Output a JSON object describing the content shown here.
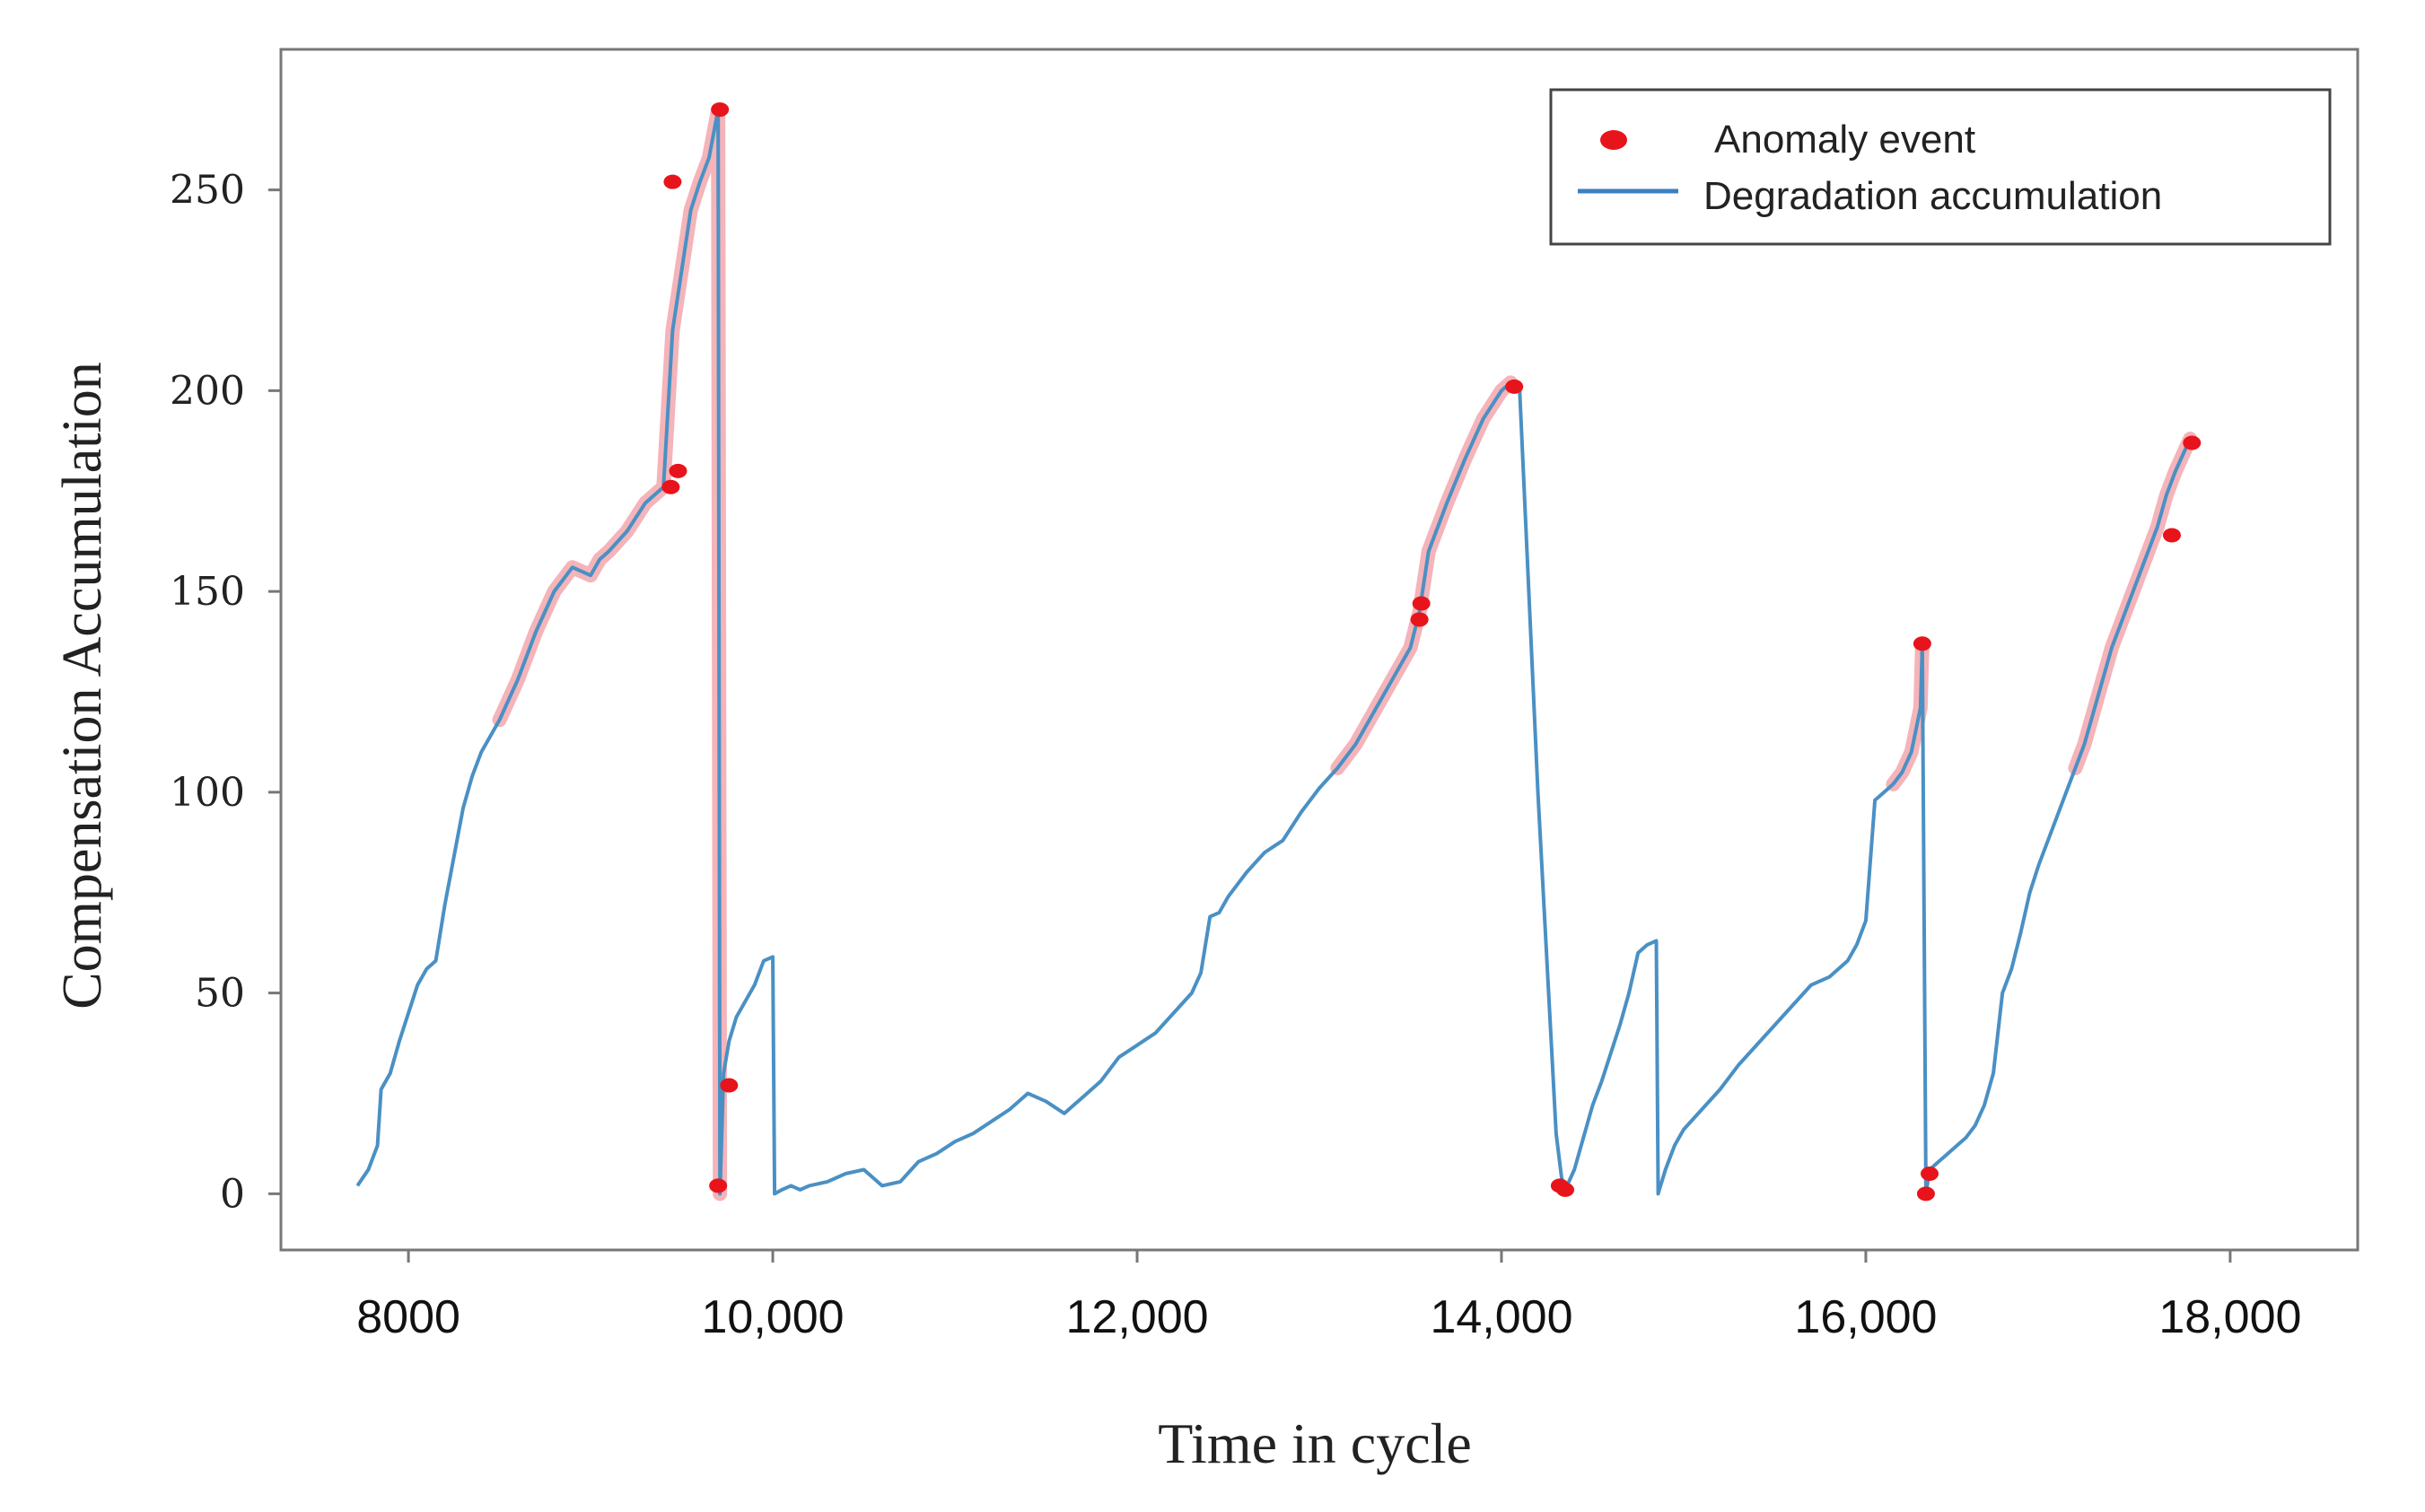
{
  "chart_data": {
    "type": "line",
    "title": "",
    "xlabel": "Time  in cycle",
    "ylabel": "Compensation Accumulation",
    "xlim": [
      7300,
      18700
    ],
    "ylim": [
      -14,
      285
    ],
    "x_ticks": [
      {
        "value": 8000,
        "label": "8000"
      },
      {
        "value": 10000,
        "label": "10,000"
      },
      {
        "value": 12000,
        "label": "12,000"
      },
      {
        "value": 14000,
        "label": "14,000"
      },
      {
        "value": 16000,
        "label": "16,000"
      },
      {
        "value": 18000,
        "label": "18,000"
      }
    ],
    "y_ticks": [
      {
        "value": 0,
        "label": "0"
      },
      {
        "value": 50,
        "label": "50"
      },
      {
        "value": 100,
        "label": "100"
      },
      {
        "value": 150,
        "label": "150"
      },
      {
        "value": 200,
        "label": "200"
      },
      {
        "value": 250,
        "label": "250"
      }
    ],
    "legend": {
      "position": "top-right",
      "entries": [
        {
          "label": "Anomaly event",
          "marker": "dot",
          "color": "#e8141b"
        },
        {
          "label": "Degradation accumulation",
          "marker": "line",
          "color": "#3d7fc1"
        }
      ]
    },
    "series": [
      {
        "name": "Degradation accumulation",
        "color": "#4a90c4",
        "x": [
          7720,
          7780,
          7830,
          7850,
          7900,
          7950,
          8000,
          8050,
          8100,
          8150,
          8200,
          8250,
          8300,
          8350,
          8400,
          8450,
          8500,
          8600,
          8700,
          8800,
          8900,
          9000,
          9050,
          9100,
          9200,
          9300,
          9400,
          9450,
          9500,
          9550,
          9600,
          9650,
          9700,
          9710,
          9730,
          9760,
          9800,
          9850,
          9900,
          9950,
          10000,
          10010,
          10050,
          10100,
          10150,
          10200,
          10300,
          10400,
          10500,
          10600,
          10700,
          10800,
          10900,
          11000,
          11100,
          11200,
          11300,
          11400,
          11500,
          11600,
          11650,
          11700,
          11800,
          11900,
          12000,
          12100,
          12200,
          12300,
          12350,
          12400,
          12450,
          12500,
          12600,
          12700,
          12800,
          12900,
          13000,
          13100,
          13200,
          13300,
          13400,
          13500,
          13550,
          13600,
          13700,
          13800,
          13900,
          14000,
          14050,
          14100,
          14200,
          14300,
          14330,
          14350,
          14400,
          14450,
          14500,
          14550,
          14600,
          14650,
          14700,
          14750,
          14800,
          14850,
          14860,
          14900,
          14950,
          15000,
          15100,
          15200,
          15300,
          15400,
          15500,
          15600,
          15700,
          15800,
          15900,
          15950,
          16000,
          16050,
          16100,
          16150,
          16200,
          16250,
          16300,
          16310,
          16330,
          16350,
          16400,
          16450,
          16500,
          16550,
          16600,
          16650,
          16700,
          16750,
          16800,
          16850,
          16900,
          16950,
          17000,
          17050,
          17100,
          17150,
          17200,
          17250,
          17300,
          17350,
          17400,
          17450,
          17500,
          17550,
          17600,
          17650,
          17700,
          17750,
          17780
        ],
        "values": [
          2,
          6,
          12,
          26,
          30,
          38,
          45,
          52,
          56,
          58,
          72,
          84,
          96,
          104,
          110,
          114,
          118,
          128,
          140,
          150,
          156,
          154,
          158,
          160,
          165,
          172,
          176,
          215,
          230,
          245,
          252,
          258,
          270,
          0,
          30,
          38,
          44,
          48,
          52,
          58,
          59,
          0,
          1,
          2,
          1,
          2,
          3,
          5,
          6,
          2,
          3,
          8,
          10,
          13,
          15,
          18,
          21,
          25,
          23,
          20,
          22,
          24,
          28,
          34,
          37,
          40,
          45,
          50,
          55,
          69,
          70,
          74,
          80,
          85,
          88,
          95,
          101,
          106,
          112,
          120,
          128,
          136,
          145,
          160,
          172,
          183,
          193,
          200,
          202,
          200,
          100,
          15,
          4,
          1,
          6,
          14,
          22,
          28,
          35,
          42,
          50,
          60,
          62,
          63,
          0,
          6,
          12,
          16,
          21,
          26,
          32,
          37,
          42,
          47,
          52,
          54,
          58,
          62,
          68,
          98,
          100,
          102,
          105,
          110,
          121,
          137,
          0,
          6,
          8,
          10,
          12,
          14,
          17,
          22,
          30,
          50,
          56,
          65,
          75,
          82,
          88,
          94,
          100,
          106,
          112,
          120,
          128,
          136,
          142,
          148,
          154,
          160,
          166,
          174,
          180,
          185,
          188
        ]
      },
      {
        "name": "Anomaly event",
        "color": "#e8141b",
        "x": [
          9710,
          9450,
          9440,
          9480,
          9700,
          9760,
          13550,
          13560,
          14070,
          14350,
          14320,
          16310,
          16330,
          16350,
          17680,
          17790
        ],
        "values": [
          270,
          252,
          176,
          180,
          2,
          27,
          143,
          147,
          201,
          1,
          2,
          137,
          0,
          5,
          164,
          187
        ]
      }
    ]
  }
}
